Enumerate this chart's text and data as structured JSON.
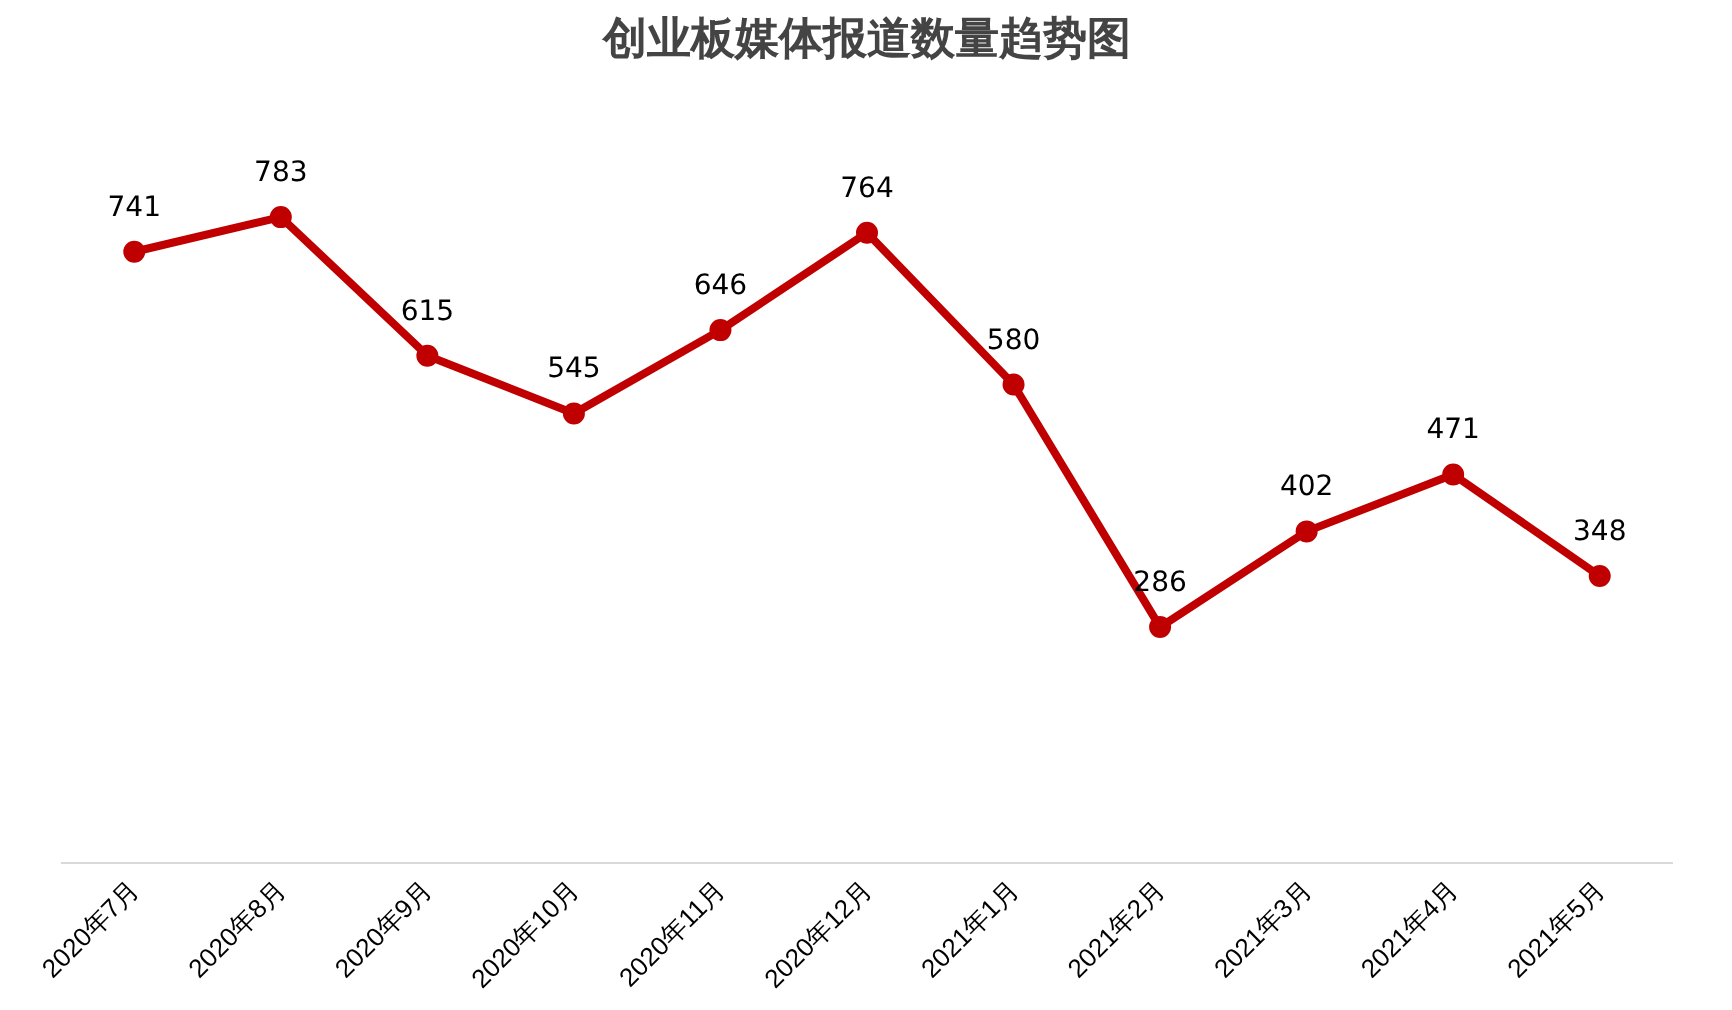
{
  "chart_data": {
    "type": "line",
    "title": "创业板媒体报道数量趋势图",
    "categories": [
      "2020年7月",
      "2020年8月",
      "2020年9月",
      "2020年10月",
      "2020年11月",
      "2020年12月",
      "2021年1月",
      "2021年2月",
      "2021年3月",
      "2021年4月",
      "2021年5月"
    ],
    "series": [
      {
        "color": "#c00000",
        "values": [
          741,
          783,
          615,
          545,
          646,
          764,
          580,
          286,
          402,
          471,
          348
        ]
      }
    ],
    "data_labels": true,
    "marker": "circle",
    "line_style": "solid",
    "grid": false,
    "tick_labels": "x"
  }
}
